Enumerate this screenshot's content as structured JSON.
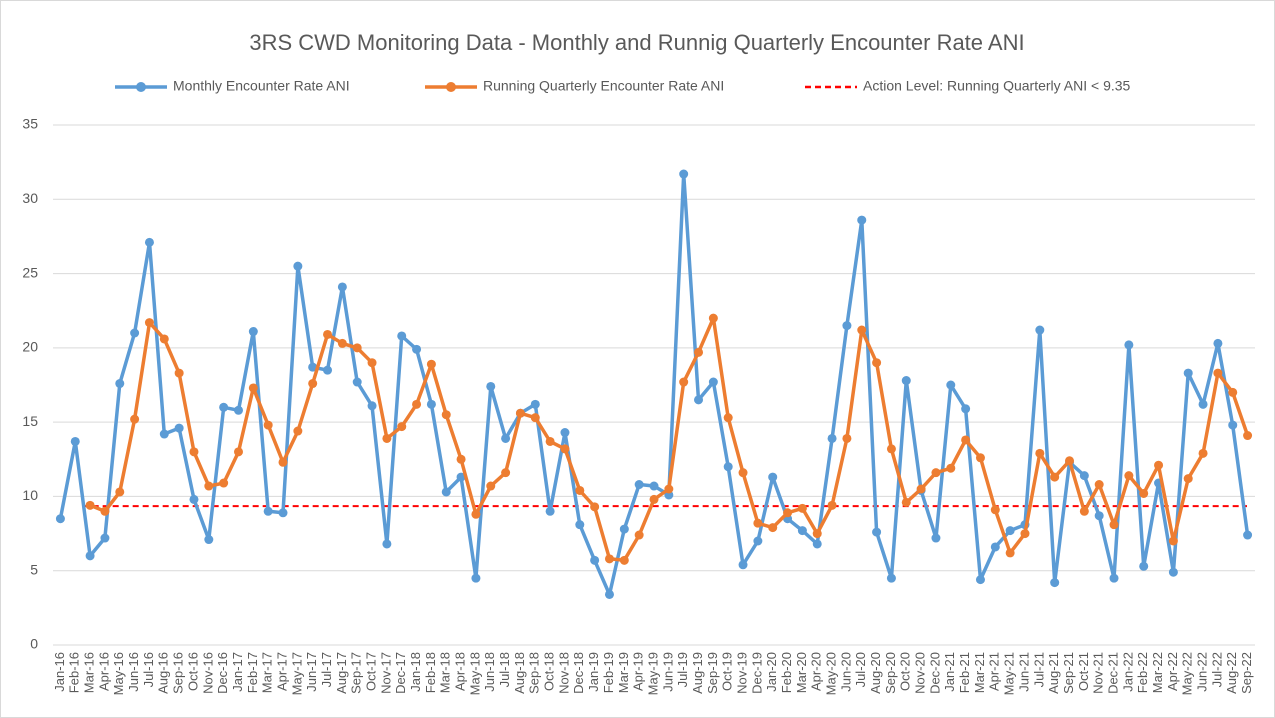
{
  "chart_data": {
    "type": "line",
    "title": "3RS CWD Monitoring Data - Monthly and Runnig Quarterly Encounter Rate ANI",
    "categories": [
      "Jan-16",
      "Feb-16",
      "Mar-16",
      "Apr-16",
      "May-16",
      "Jun-16",
      "Jul-16",
      "Aug-16",
      "Sep-16",
      "Oct-16",
      "Nov-16",
      "Dec-16",
      "Jan-17",
      "Feb-17",
      "Mar-17",
      "Apr-17",
      "May-17",
      "Jun-17",
      "Jul-17",
      "Aug-17",
      "Sep-17",
      "Oct-17",
      "Nov-17",
      "Dec-17",
      "Jan-18",
      "Feb-18",
      "Mar-18",
      "Apr-18",
      "May-18",
      "Jun-18",
      "Jul-18",
      "Aug-18",
      "Sep-18",
      "Oct-18",
      "Nov-18",
      "Dec-18",
      "Jan-19",
      "Feb-19",
      "Mar-19",
      "Apr-19",
      "May-19",
      "Jun-19",
      "Jul-19",
      "Aug-19",
      "Sep-19",
      "Oct-19",
      "Nov-19",
      "Dec-19",
      "Jan-20",
      "Feb-20",
      "Mar-20",
      "Apr-20",
      "May-20",
      "Jun-20",
      "Jul-20",
      "Aug-20",
      "Sep-20",
      "Oct-20",
      "Nov-20",
      "Dec-20",
      "Jan-21",
      "Feb-21",
      "Mar-21",
      "Apr-21",
      "May-21",
      "Jun-21",
      "Jul-21",
      "Aug-21",
      "Sep-21",
      "Oct-21",
      "Nov-21",
      "Dec-21",
      "Jan-22",
      "Feb-22",
      "Mar-22",
      "Apr-22",
      "May-22",
      "Jun-22",
      "Jul-22",
      "Aug-22",
      "Sep-22"
    ],
    "series": [
      {
        "name": "Monthly Encounter Rate ANI",
        "color": "#5b9bd5",
        "values": [
          8.5,
          13.7,
          6.0,
          7.2,
          17.6,
          21.0,
          27.1,
          14.2,
          14.6,
          9.8,
          7.1,
          16.0,
          15.8,
          21.1,
          9.0,
          8.9,
          25.5,
          18.7,
          18.5,
          24.1,
          17.7,
          16.1,
          6.8,
          20.8,
          19.9,
          16.2,
          10.3,
          11.3,
          4.5,
          17.4,
          13.9,
          15.6,
          16.2,
          9.0,
          14.3,
          8.1,
          5.7,
          3.4,
          7.8,
          10.8,
          10.7,
          10.1,
          31.7,
          16.5,
          17.7,
          12.0,
          5.4,
          7.0,
          11.3,
          8.5,
          7.7,
          6.8,
          13.9,
          21.5,
          28.6,
          7.6,
          4.5,
          17.8,
          10.4,
          7.2,
          17.5,
          15.9,
          4.4,
          6.6,
          7.7,
          8.1,
          21.2,
          4.2,
          12.3,
          11.4,
          8.7,
          4.5,
          20.2,
          5.3,
          10.9,
          4.9,
          18.3,
          16.2,
          20.3,
          14.8,
          7.4
        ]
      },
      {
        "name": "Running Quarterly Encounter Rate ANI",
        "color": "#ed7d31",
        "values": [
          null,
          null,
          9.4,
          9.0,
          10.3,
          15.2,
          21.7,
          20.6,
          18.3,
          13.0,
          10.7,
          10.9,
          13.0,
          17.3,
          14.8,
          12.3,
          14.4,
          17.6,
          20.9,
          20.3,
          20.0,
          19.0,
          13.9,
          14.7,
          16.2,
          18.9,
          15.5,
          12.5,
          8.8,
          10.7,
          11.6,
          15.6,
          15.3,
          13.7,
          13.2,
          10.4,
          9.3,
          5.8,
          5.7,
          7.4,
          9.8,
          10.5,
          17.7,
          19.7,
          22.0,
          15.3,
          11.6,
          8.2,
          7.9,
          8.9,
          9.2,
          7.5,
          9.4,
          13.9,
          21.2,
          19.0,
          13.2,
          9.6,
          10.5,
          11.6,
          11.9,
          13.8,
          12.6,
          9.1,
          6.2,
          7.5,
          12.9,
          11.3,
          12.4,
          9.0,
          10.8,
          8.1,
          11.4,
          10.2,
          12.1,
          7.0,
          11.2,
          12.9,
          18.3,
          17.0,
          14.1
        ]
      }
    ],
    "reference_line": {
      "name": "Action Level: Running Quarterly ANI < 9.35",
      "value": 9.35,
      "color": "#ff0000",
      "dashed": true
    },
    "ylim": [
      0,
      35
    ],
    "yticks": [
      0,
      5,
      10,
      15,
      20,
      25,
      30,
      35
    ],
    "grid": true,
    "legend": "top"
  }
}
